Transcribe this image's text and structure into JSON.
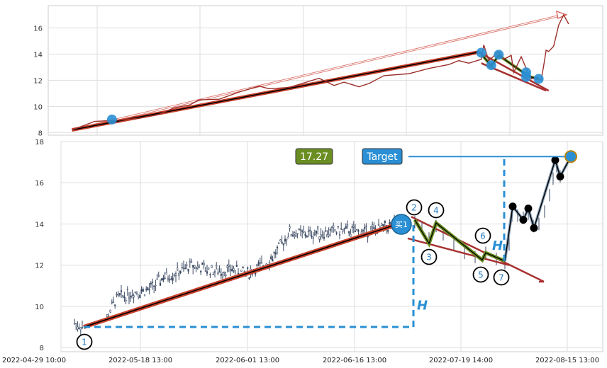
{
  "chart_data": [
    {
      "panel": "top",
      "type": "line",
      "ylim": [
        7.8,
        17.7
      ],
      "y_ticks": [
        "8",
        "10",
        "12",
        "14",
        "16"
      ],
      "grid": true,
      "colors": {
        "price": "#9c2f2a",
        "trend": "#c8412c",
        "marker": "#2a8fd4",
        "arrow": "#d2544a"
      },
      "series": [
        {
          "values": [
            [
              0.025,
              8.2
            ],
            [
              0.07,
              8.85
            ],
            [
              0.12,
              8.95
            ],
            [
              0.16,
              9.1
            ],
            [
              0.2,
              9.4
            ],
            [
              0.23,
              9.9
            ],
            [
              0.26,
              10.1
            ],
            [
              0.28,
              10.5
            ],
            [
              0.32,
              10.55
            ],
            [
              0.36,
              11.1
            ],
            [
              0.4,
              11.55
            ],
            [
              0.42,
              11.35
            ],
            [
              0.46,
              11.45
            ],
            [
              0.52,
              12.15
            ],
            [
              0.55,
              11.6
            ],
            [
              0.57,
              11.85
            ],
            [
              0.6,
              11.5
            ],
            [
              0.62,
              11.75
            ],
            [
              0.65,
              12.35
            ],
            [
              0.7,
              12.5
            ],
            [
              0.74,
              12.9
            ],
            [
              0.78,
              13.2
            ],
            [
              0.8,
              13.5
            ],
            [
              0.82,
              13.3
            ],
            [
              0.845,
              13.6
            ],
            [
              0.85,
              14.7
            ],
            [
              0.86,
              13.5
            ],
            [
              0.88,
              14.2
            ],
            [
              0.89,
              13.6
            ],
            [
              0.905,
              13.9
            ],
            [
              0.91,
              12.6
            ],
            [
              0.925,
              13.8
            ],
            [
              0.935,
              12.9
            ],
            [
              0.945,
              12.1
            ],
            [
              0.955,
              12.2
            ],
            [
              0.965,
              12.0
            ],
            [
              0.97,
              13.1
            ],
            [
              0.975,
              14.3
            ],
            [
              0.98,
              14.2
            ],
            [
              0.99,
              14.6
            ],
            [
              1.0,
              16.2
            ],
            [
              1.01,
              17.0
            ],
            [
              1.02,
              16.3
            ]
          ]
        }
      ],
      "trendline": [
        [
          0.025,
          8.2
        ],
        [
          0.84,
          14.15
        ]
      ],
      "pattern_triangle": [
        [
          0.84,
          14.15
        ],
        [
          0.9,
          13.9
        ],
        [
          0.98,
          11.2
        ]
      ],
      "markers_y": [
        9.0,
        14.1,
        13.15,
        13.95,
        12.6,
        12.25,
        12.1
      ],
      "arrow_to": [
        1.01,
        17.0
      ]
    },
    {
      "panel": "bottom",
      "type": "candlestick",
      "ylim": [
        7.8,
        18.0
      ],
      "y_ticks": [
        "8",
        "10",
        "12",
        "14",
        "16",
        "18"
      ],
      "x_ticks": [
        "2022-04-29 10:00",
        "2022-05-18 13:00",
        "2022-06-01 13:00",
        "2022-06-16 13:00",
        "2022-07-19 14:00",
        "2022-08-15 13:00"
      ],
      "grid": true,
      "labels": {
        "price_box": "17.27",
        "target": "Target",
        "buy": "买1",
        "h": "H",
        "points": [
          "1",
          "2",
          "3",
          "4",
          "5",
          "6",
          "7"
        ]
      },
      "colors": {
        "candle": "#3b4a63",
        "trend": "#c8412c",
        "black": "#000000",
        "buy": "#2a8fd4",
        "box": "#6b8e23",
        "zigzag": "#556b2f",
        "dash": "#2a8fd4"
      },
      "pivot_values": [
        9.0,
        14.2,
        13.0,
        14.05,
        12.25,
        12.6,
        12.2
      ],
      "zigzag_after": [
        [
          12.2
        ],
        [
          14.85
        ],
        [
          14.2
        ],
        [
          14.75
        ],
        [
          13.8
        ],
        [
          17.1
        ],
        [
          16.3
        ],
        [
          17.27
        ]
      ],
      "target_value": 17.27
    }
  ]
}
